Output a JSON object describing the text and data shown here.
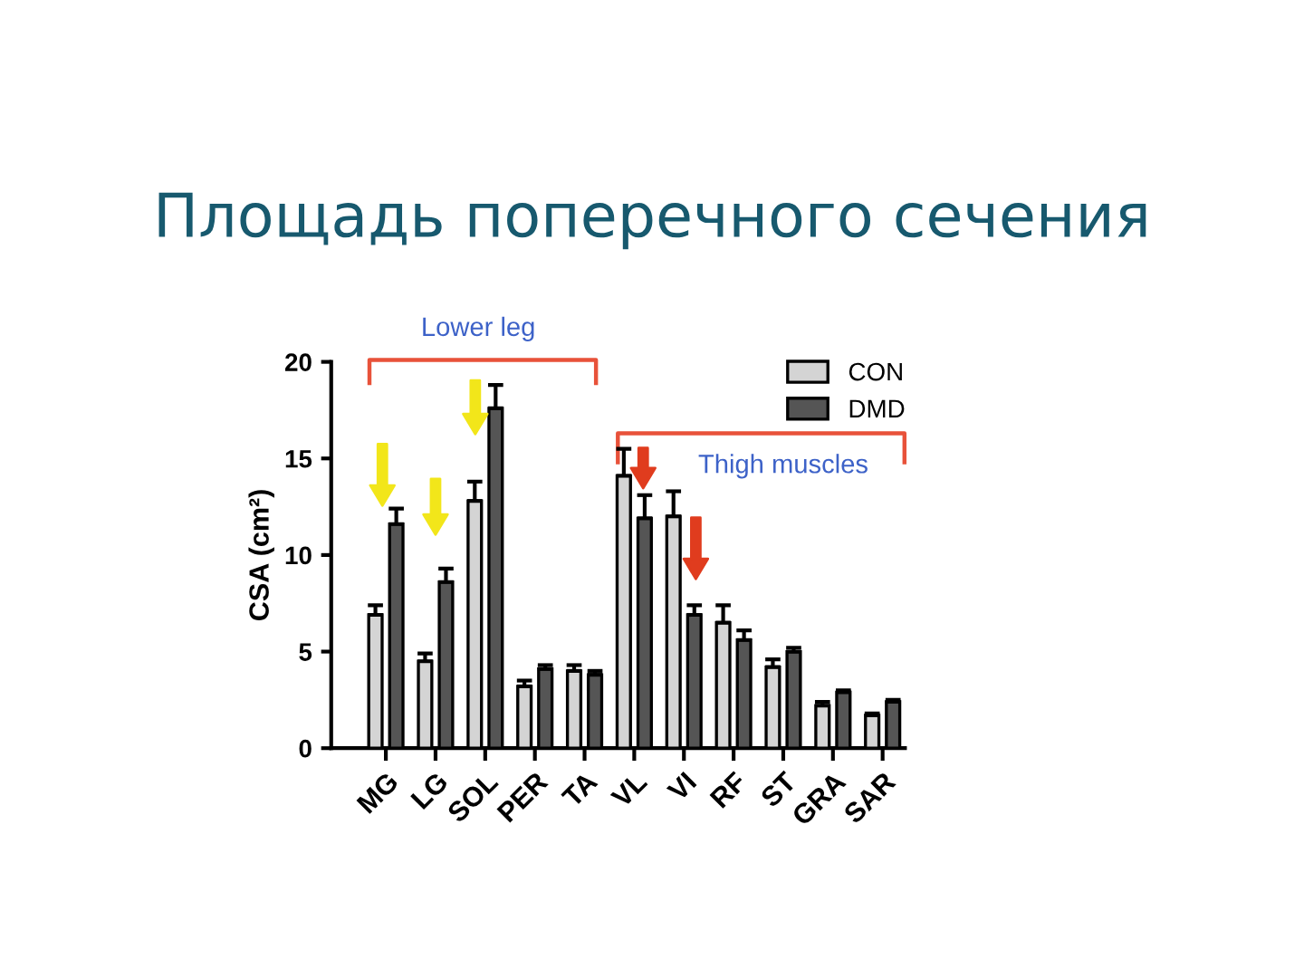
{
  "chart_data": {
    "type": "bar",
    "title": "Площадь поперечного сечения",
    "ylabel": "CSA (cm²)",
    "categories": [
      "MG",
      "LG",
      "SOL",
      "PER",
      "TA",
      "VL",
      "VI",
      "RF",
      "ST",
      "GRA",
      "SAR"
    ],
    "series": [
      {
        "name": "CON",
        "color": "#d4d4d4",
        "values": [
          6.9,
          4.5,
          12.8,
          3.2,
          4.0,
          14.1,
          12.0,
          6.5,
          4.2,
          2.2,
          1.7
        ],
        "errors": [
          0.5,
          0.4,
          1.0,
          0.3,
          0.3,
          1.4,
          1.3,
          0.9,
          0.4,
          0.2,
          0.1
        ]
      },
      {
        "name": "DMD",
        "color": "#555555",
        "values": [
          11.6,
          8.6,
          17.6,
          4.1,
          3.8,
          11.9,
          6.9,
          5.6,
          5.0,
          2.9,
          2.4
        ],
        "errors": [
          0.8,
          0.7,
          1.2,
          0.2,
          0.2,
          1.2,
          0.5,
          0.5,
          0.2,
          0.1,
          0.1
        ]
      }
    ],
    "ylim": [
      0,
      20
    ],
    "yticks": [
      0,
      5,
      10,
      15,
      20
    ],
    "grid": false,
    "legend": "top right",
    "annotations": [
      "Lower leg",
      "Thigh muscles"
    ]
  }
}
